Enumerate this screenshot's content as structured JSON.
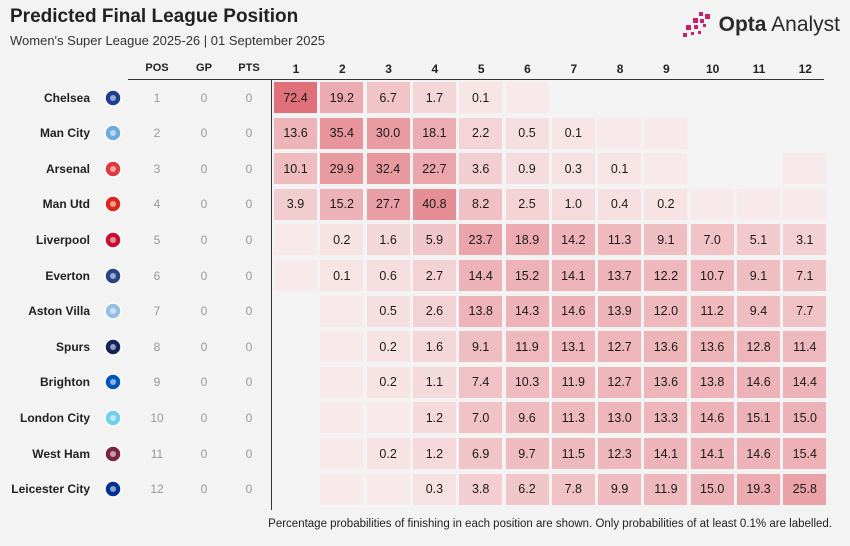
{
  "title": "Predicted Final League Position",
  "subtitle": "Women's Super League 2025-26 | 01 September 2025",
  "brand": {
    "name": "Opta",
    "suffix": " Analyst",
    "logo_icon": "opta-pixel-logo-icon",
    "color": "#c8206f"
  },
  "columns": {
    "pos": "POS",
    "gp": "GP",
    "pts": "PTS"
  },
  "footnote": "Percentage probabilities of finishing in each position are shown. Only probabilities of at least 0.1% are labelled.",
  "colors": {
    "heat_base": "#f8e9ea",
    "heat_max": "#e0707a",
    "background": "#f3f3f3"
  },
  "chart_data": {
    "type": "heatmap",
    "positions": [
      "1",
      "2",
      "3",
      "4",
      "5",
      "6",
      "7",
      "8",
      "9",
      "10",
      "11",
      "12"
    ],
    "rows": [
      {
        "team": "Chelsea",
        "crest_icon": "chelsea-crest-icon",
        "crest_color": "#1d3f8f",
        "pos": "1",
        "gp": "0",
        "pts": "0",
        "values": [
          72.4,
          19.2,
          6.7,
          1.7,
          0.1,
          0.0,
          null,
          null,
          null,
          null,
          null,
          null
        ]
      },
      {
        "team": "Man City",
        "crest_icon": "man-city-crest-icon",
        "crest_color": "#6cabdd",
        "pos": "2",
        "gp": "0",
        "pts": "0",
        "values": [
          13.6,
          35.4,
          30.0,
          18.1,
          2.2,
          0.5,
          0.1,
          0.0,
          0.0,
          null,
          null,
          null
        ]
      },
      {
        "team": "Arsenal",
        "crest_icon": "arsenal-crest-icon",
        "crest_color": "#e03a3e",
        "pos": "3",
        "gp": "0",
        "pts": "0",
        "values": [
          10.1,
          29.9,
          32.4,
          22.7,
          3.6,
          0.9,
          0.3,
          0.1,
          0.0,
          null,
          null,
          0.0
        ]
      },
      {
        "team": "Man Utd",
        "crest_icon": "man-utd-crest-icon",
        "crest_color": "#da291c",
        "pos": "4",
        "gp": "0",
        "pts": "0",
        "values": [
          3.9,
          15.2,
          27.7,
          40.8,
          8.2,
          2.5,
          1.0,
          0.4,
          0.2,
          0.0,
          0.0,
          0.0
        ]
      },
      {
        "team": "Liverpool",
        "crest_icon": "liverpool-crest-icon",
        "crest_color": "#c8102e",
        "pos": "5",
        "gp": "0",
        "pts": "0",
        "values": [
          0.0,
          0.2,
          1.6,
          5.9,
          23.7,
          18.9,
          14.2,
          11.3,
          9.1,
          7.0,
          5.1,
          3.1
        ]
      },
      {
        "team": "Everton",
        "crest_icon": "everton-crest-icon",
        "crest_color": "#274488",
        "pos": "6",
        "gp": "0",
        "pts": "0",
        "values": [
          0.0,
          0.1,
          0.6,
          2.7,
          14.4,
          15.2,
          14.1,
          13.7,
          12.2,
          10.7,
          9.1,
          7.1
        ]
      },
      {
        "team": "Aston Villa",
        "crest_icon": "aston-villa-crest-icon",
        "crest_color": "#95bfe5",
        "pos": "7",
        "gp": "0",
        "pts": "0",
        "values": [
          null,
          0.0,
          0.5,
          2.6,
          13.8,
          14.3,
          14.6,
          13.9,
          12.0,
          11.2,
          9.4,
          7.7
        ]
      },
      {
        "team": "Spurs",
        "crest_icon": "spurs-crest-icon",
        "crest_color": "#132257",
        "pos": "8",
        "gp": "0",
        "pts": "0",
        "values": [
          null,
          0.0,
          0.2,
          1.6,
          9.1,
          11.9,
          13.1,
          12.7,
          13.6,
          13.6,
          12.8,
          11.4
        ]
      },
      {
        "team": "Brighton",
        "crest_icon": "brighton-crest-icon",
        "crest_color": "#0057b8",
        "pos": "9",
        "gp": "0",
        "pts": "0",
        "values": [
          null,
          0.0,
          0.2,
          1.1,
          7.4,
          10.3,
          11.9,
          12.7,
          13.6,
          13.8,
          14.6,
          14.4
        ]
      },
      {
        "team": "London City",
        "crest_icon": "london-city-crest-icon",
        "crest_color": "#6fd0e8",
        "pos": "10",
        "gp": "0",
        "pts": "0",
        "values": [
          null,
          0.0,
          0.0,
          1.2,
          7.0,
          9.6,
          11.3,
          13.0,
          13.3,
          14.6,
          15.1,
          15.0
        ]
      },
      {
        "team": "West Ham",
        "crest_icon": "west-ham-crest-icon",
        "crest_color": "#7a263a",
        "pos": "11",
        "gp": "0",
        "pts": "0",
        "values": [
          null,
          0.0,
          0.2,
          1.2,
          6.9,
          9.7,
          11.5,
          12.3,
          14.1,
          14.1,
          14.6,
          15.4
        ]
      },
      {
        "team": "Leicester City",
        "crest_icon": "leicester-crest-icon",
        "crest_color": "#003090",
        "pos": "12",
        "gp": "0",
        "pts": "0",
        "values": [
          null,
          0.0,
          0.0,
          0.3,
          3.8,
          6.2,
          7.8,
          9.9,
          11.9,
          15.0,
          19.3,
          25.8
        ]
      }
    ]
  }
}
